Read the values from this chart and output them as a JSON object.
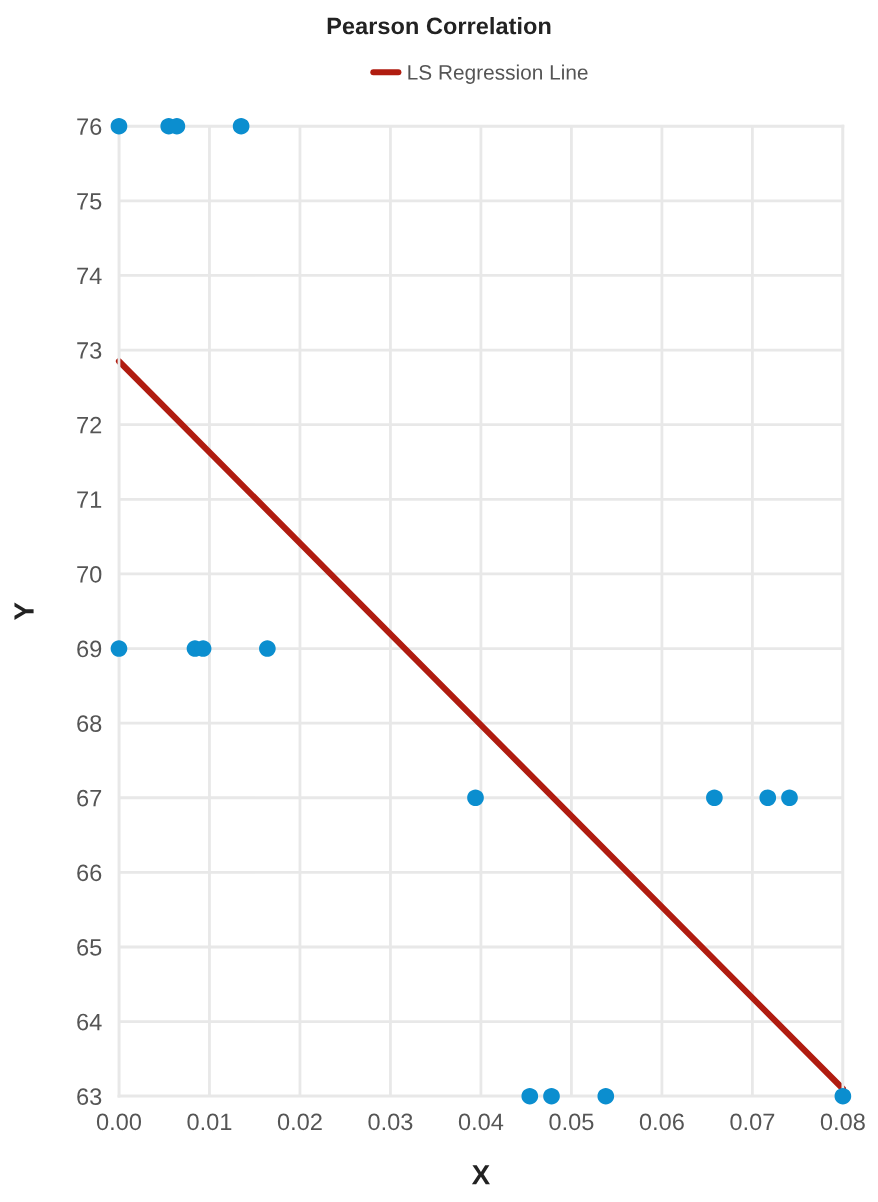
{
  "chart_data": {
    "type": "scatter",
    "title": "Pearson Correlation",
    "xlabel": "X",
    "ylabel": "Y",
    "series": [
      {
        "color": "#0b8ecf",
        "marker": "circle",
        "x": [
          0.0,
          0.0055,
          0.0064,
          0.0135,
          0.0,
          0.0084,
          0.0093,
          0.0164,
          0.0394,
          0.0658,
          0.0717,
          0.0741,
          0.0454,
          0.0478,
          0.0538,
          0.08
        ],
        "values": [
          76,
          76,
          76,
          76,
          69,
          69,
          69,
          69,
          67,
          67,
          67,
          67,
          63,
          63,
          63,
          63
        ]
      },
      {
        "type": "line",
        "name": "LS Regression Line",
        "color": "#b01c10",
        "marker": "none",
        "line_style": "solid",
        "x": [
          0.0,
          0.08
        ],
        "values": [
          72.85,
          63.1
        ]
      }
    ],
    "xlim": [
      0.0,
      0.08
    ],
    "xticks": [
      {
        "value": 0.0,
        "label": "0.00"
      },
      0.01,
      0.02,
      0.03,
      0.04,
      0.05,
      0.06,
      0.07,
      0.08
    ],
    "ylim": [
      63,
      76
    ],
    "yticks": [
      63,
      64,
      65,
      66,
      67,
      68,
      69,
      70,
      71,
      72,
      73,
      74,
      75,
      76
    ],
    "grid": true,
    "legend": "top"
  }
}
